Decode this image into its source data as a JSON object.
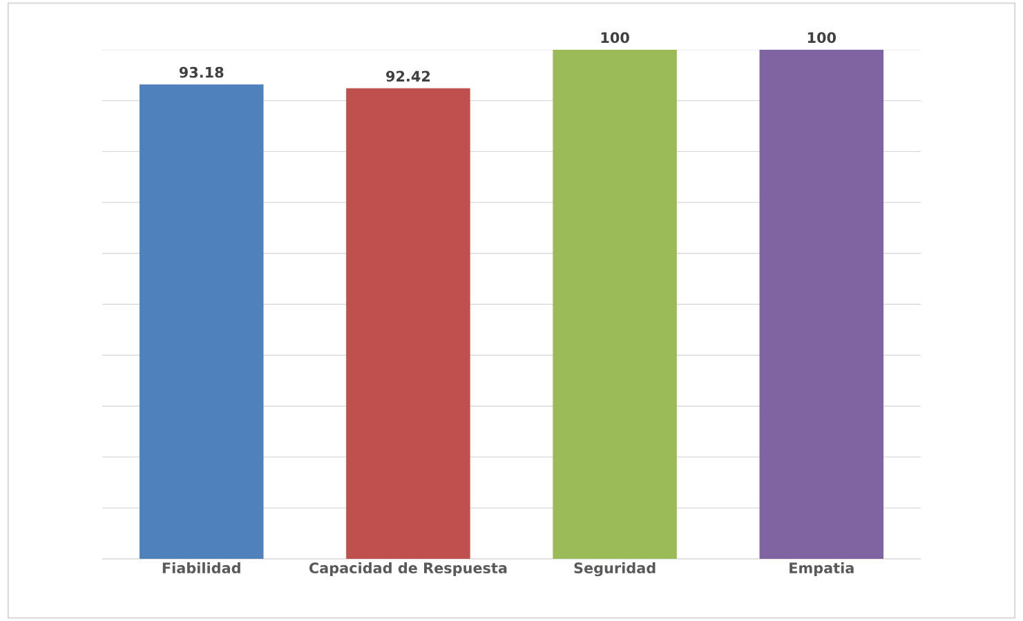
{
  "chart_data": {
    "type": "bar",
    "categories": [
      "Fiabilidad",
      "Capacidad de Respuesta",
      "Seguridad",
      "Empatia"
    ],
    "values": [
      93.18,
      92.42,
      100,
      100
    ],
    "colors": [
      "#4f81bd",
      "#c0504d",
      "#9bbb59",
      "#8064a2"
    ],
    "ylim": [
      0,
      100
    ],
    "yticks": [
      {
        "value": 0,
        "label": null
      },
      {
        "value": 10,
        "label": null
      },
      {
        "value": 20,
        "label": null
      },
      {
        "value": 30,
        "label": null
      },
      {
        "value": 40,
        "label": null
      },
      {
        "value": 50,
        "label": null
      },
      {
        "value": 60,
        "label": null
      },
      {
        "value": 70,
        "label": null
      },
      {
        "value": 80,
        "label": null
      },
      {
        "value": 90,
        "label": null
      },
      {
        "value": 100,
        "label": null
      }
    ],
    "tick_labels": "x",
    "grid": "y",
    "data_labels": true
  }
}
